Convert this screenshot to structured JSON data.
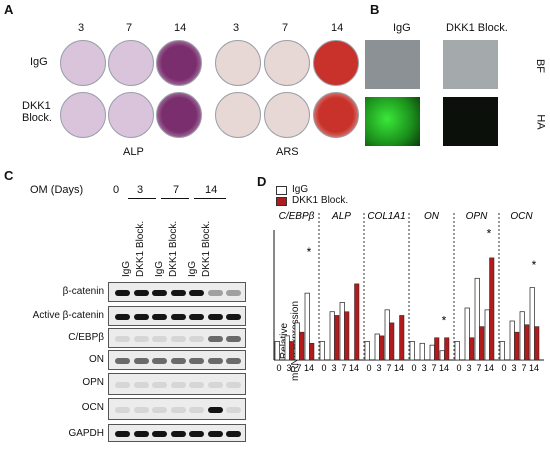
{
  "panel_a": {
    "label": "A",
    "days": [
      "3",
      "7",
      "14",
      "3",
      "7",
      "14"
    ],
    "rows": [
      "IgG",
      "DKK1\nBlock."
    ],
    "stain_labels": [
      "ALP",
      "ARS"
    ],
    "colors": {
      "alp_light": "#d9c4dc",
      "alp_dark": "#7a2e6e",
      "ars_light": "#e7d8d5",
      "ars_dark": "#c8322a"
    }
  },
  "panel_b": {
    "label": "B",
    "columns": [
      "IgG",
      "DKK1 Block."
    ],
    "rows": [
      "BF",
      "HA"
    ],
    "colors": {
      "bf": "#8a9094",
      "ha_bright": "#2bd62b",
      "ha_dark": "#0a0f0a"
    }
  },
  "panel_c": {
    "label": "C",
    "om_label": "OM (Days)",
    "days": [
      "0",
      "3",
      "7",
      "14"
    ],
    "lanes": [
      "IgG",
      "DKK1 Block.",
      "IgG",
      "DKK1 Block.",
      "IgG",
      "DKK1 Block."
    ],
    "proteins": [
      "β-catenin",
      "Active β-catenin",
      "C/EBPβ",
      "ON",
      "OPN",
      "OCN",
      "GAPDH"
    ]
  },
  "panel_d": {
    "label": "D",
    "legend": [
      "IgG",
      "DKK1 Block."
    ],
    "genes": [
      "C/EBPβ",
      "ALP",
      "COL1A1",
      "ON",
      "OPN",
      "OCN"
    ],
    "ylabel": "Relative\nmRNA expression",
    "xticks": [
      "0",
      "3",
      "7",
      "14"
    ],
    "colors": {
      "igg": "#ffffff",
      "dkk1": "#b01c1c"
    }
  },
  "chart_data": {
    "type": "bar",
    "ylim": [
      0,
      7
    ],
    "series": [
      {
        "name": "IgG",
        "values": [
          [
            1.0,
            1.3,
            2.0,
            3.6
          ],
          [
            1.0,
            2.6,
            3.1,
            null
          ],
          [
            1.0,
            1.4,
            2.7,
            null
          ],
          [
            1.0,
            0.9,
            0.8,
            0.5
          ],
          [
            1.0,
            2.8,
            4.4,
            2.7
          ],
          [
            1.0,
            2.1,
            2.6,
            3.9
          ]
        ]
      },
      {
        "name": "DKK1 Block.",
        "values": [
          [
            null,
            1.0,
            1.5,
            0.9
          ],
          [
            null,
            2.4,
            2.6,
            4.1
          ],
          [
            null,
            1.3,
            2.0,
            2.4
          ],
          [
            null,
            null,
            1.2,
            1.2
          ],
          [
            null,
            1.2,
            1.8,
            5.5
          ],
          [
            null,
            1.5,
            1.9,
            1.8
          ]
        ]
      }
    ],
    "significance": [
      "*",
      "*",
      "*",
      "*"
    ]
  }
}
